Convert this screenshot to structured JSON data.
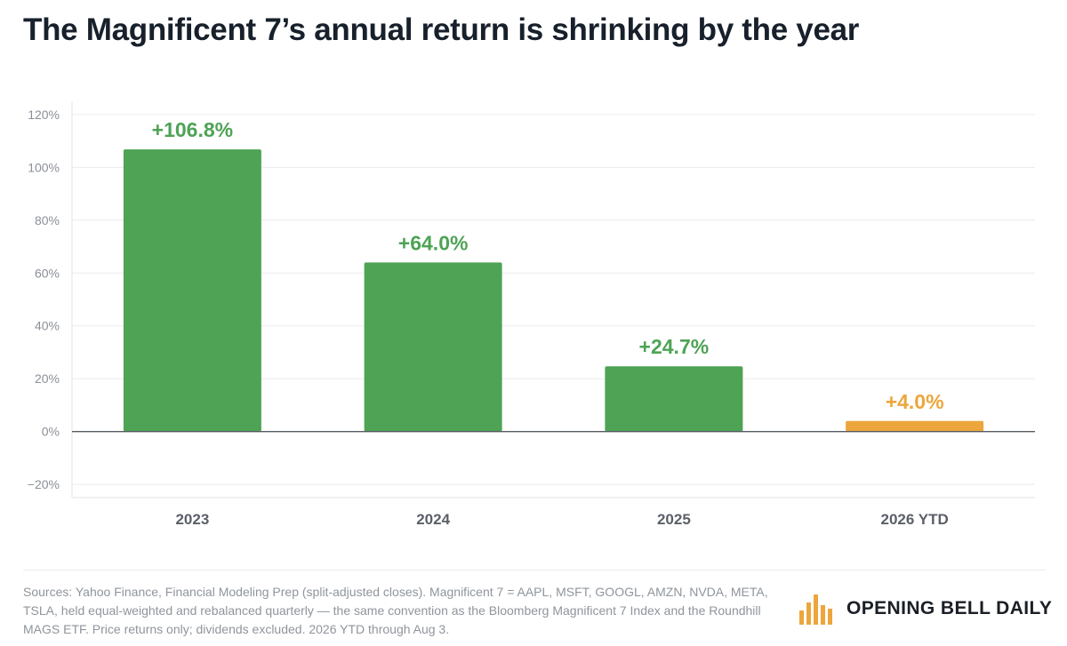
{
  "title": "The Magnificent 7’s annual return is shrinking by the year",
  "chart_data": {
    "type": "bar",
    "categories": [
      "2023",
      "2024",
      "2025",
      "2026 YTD"
    ],
    "values": [
      106.8,
      64.0,
      24.7,
      4.0
    ],
    "value_labels": [
      "+106.8%",
      "+64.0%",
      "+24.7%",
      "+4.0%"
    ],
    "bar_colors": [
      "#4ea355",
      "#4ea355",
      "#4ea355",
      "#eca63c"
    ],
    "ylim": [
      -25,
      125
    ],
    "yticks": [
      -20,
      0,
      20,
      40,
      60,
      80,
      100,
      120
    ],
    "ytick_labels": [
      "−20%",
      "0%",
      "20%",
      "40%",
      "60%",
      "80%",
      "100%",
      "120%"
    ],
    "xlabel": "",
    "ylabel": "",
    "grid": true,
    "legend": "none"
  },
  "footer": {
    "source": "Sources: Yahoo Finance, Financial Modeling Prep (split-adjusted closes). Magnificent 7 = AAPL, MSFT, GOOGL, AMZN, NVDA, META, TSLA, held equal-weighted and rebalanced quarterly — the same convention as the Bloomberg Magnificent 7 Index and the Roundhill MAGS ETF. Price returns only; dividends excluded. 2026 YTD through Aug 3.",
    "brand": "OPENING BELL DAILY",
    "brand_icon": "bar-chart-logo-icon",
    "brand_color": "#eca63c"
  }
}
